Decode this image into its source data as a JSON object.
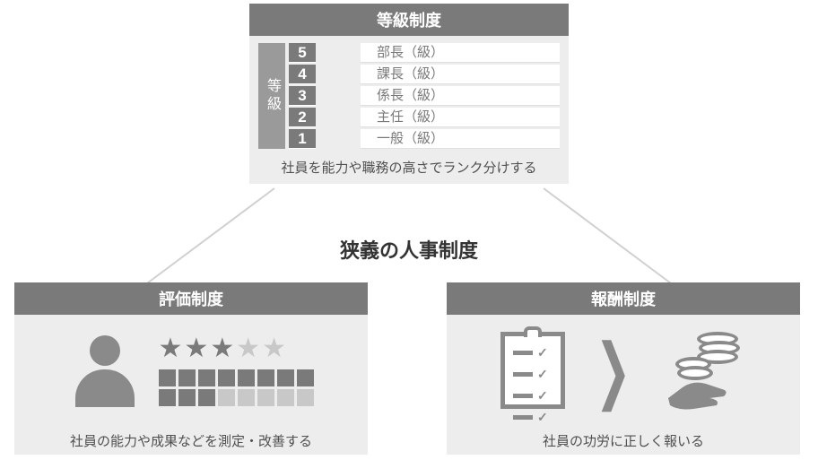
{
  "center_title": "狭義の人事制度",
  "colors": {
    "header_bg": "#7a7a7a",
    "panel_bg": "#ededed",
    "icon": "#8a8a8a",
    "text": "#505050",
    "muted": "#c8c8c8",
    "white": "#ffffff"
  },
  "grade_panel": {
    "title": "等級制度",
    "vertical_label": "等級",
    "rows": [
      {
        "num": "5",
        "label": "部長（級）"
      },
      {
        "num": "4",
        "label": "課長（級）"
      },
      {
        "num": "3",
        "label": "係長（級）"
      },
      {
        "num": "2",
        "label": "主任（級）"
      },
      {
        "num": "1",
        "label": "一般（級）"
      }
    ],
    "caption": "社員を能力や職務の高さでランク分けする"
  },
  "eval_panel": {
    "title": "評価制度",
    "star_rating": {
      "total": 5,
      "filled": 3
    },
    "square_rating": {
      "cols": 8,
      "rows": 2,
      "row_fill": [
        8,
        3
      ]
    },
    "caption": "社員の能力や成果などを測定・改善する"
  },
  "reward_panel": {
    "title": "報酬制度",
    "checklist_items": 4,
    "caption": "社員の功労に正しく報いる"
  }
}
